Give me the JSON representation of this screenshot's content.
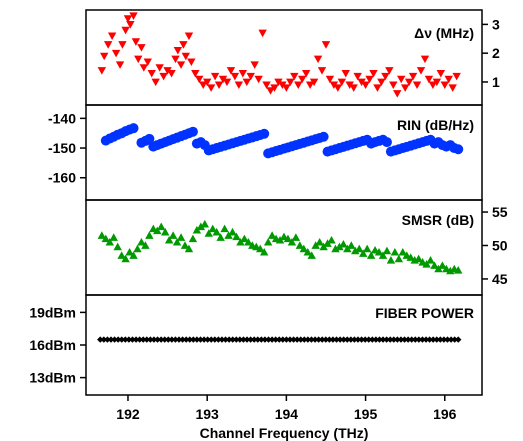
{
  "chart_data": [
    {
      "type": "scatter",
      "label": "Δν (MHz)",
      "marker": "triangle-down",
      "color": "#ff0000",
      "y_axis_side": "right",
      "ylim": [
        0.2,
        3.5
      ],
      "yticks": [
        1,
        2,
        3
      ],
      "ytick_labels": [
        "1",
        "2",
        "3"
      ],
      "x": [
        191.67,
        191.7,
        191.75,
        191.8,
        191.85,
        191.9,
        191.93,
        191.97,
        192.0,
        192.03,
        192.07,
        192.1,
        192.13,
        192.17,
        192.2,
        192.25,
        192.3,
        192.35,
        192.4,
        192.45,
        192.5,
        192.55,
        192.6,
        192.63,
        192.67,
        192.7,
        192.73,
        192.77,
        192.8,
        192.85,
        192.9,
        192.95,
        193.0,
        193.05,
        193.1,
        193.15,
        193.2,
        193.25,
        193.3,
        193.35,
        193.4,
        193.45,
        193.5,
        193.55,
        193.6,
        193.65,
        193.7,
        193.75,
        193.8,
        193.85,
        193.9,
        193.95,
        194.0,
        194.05,
        194.1,
        194.15,
        194.2,
        194.25,
        194.3,
        194.35,
        194.4,
        194.45,
        194.5,
        194.55,
        194.6,
        194.65,
        194.7,
        194.75,
        194.8,
        194.85,
        194.9,
        194.95,
        195.0,
        195.05,
        195.1,
        195.15,
        195.2,
        195.25,
        195.3,
        195.35,
        195.4,
        195.45,
        195.5,
        195.55,
        195.6,
        195.65,
        195.7,
        195.75,
        195.8,
        195.85,
        195.9,
        195.95,
        196.0,
        196.05,
        196.1,
        196.15
      ],
      "y": [
        1.4,
        1.9,
        2.3,
        2.6,
        2.0,
        1.6,
        2.3,
        2.8,
        3.2,
        3.0,
        3.3,
        2.4,
        1.8,
        2.2,
        1.5,
        1.7,
        1.3,
        1.0,
        1.5,
        1.2,
        1.4,
        1.3,
        1.8,
        2.1,
        1.6,
        2.3,
        1.9,
        2.6,
        1.7,
        1.3,
        1.1,
        0.9,
        1.0,
        0.8,
        1.2,
        0.9,
        1.1,
        1.0,
        1.4,
        1.2,
        0.9,
        1.3,
        1.0,
        1.2,
        1.6,
        1.1,
        2.7,
        0.9,
        0.7,
        0.8,
        1.0,
        0.9,
        0.8,
        1.0,
        1.2,
        0.9,
        1.1,
        1.3,
        0.9,
        1.0,
        1.8,
        1.4,
        2.3,
        1.1,
        0.9,
        0.8,
        1.0,
        1.3,
        0.9,
        0.8,
        1.2,
        1.0,
        0.9,
        1.1,
        1.3,
        0.8,
        1.0,
        1.2,
        1.4,
        0.9,
        0.6,
        1.1,
        0.8,
        1.0,
        1.2,
        0.9,
        1.4,
        1.8,
        1.1,
        0.9,
        1.0,
        1.3,
        0.9,
        1.1,
        0.8,
        1.2
      ]
    },
    {
      "type": "scatter",
      "label": "RIN (dB/Hz)",
      "marker": "circle",
      "color": "#0033ff",
      "y_axis_side": "left",
      "ylim": [
        -167.5,
        -135.5
      ],
      "yticks": [
        -140,
        -150,
        -160
      ],
      "ytick_labels": [
        "-140",
        "-150",
        "-160"
      ],
      "x": [
        191.72,
        191.77,
        191.82,
        191.87,
        191.92,
        191.97,
        192.02,
        192.07,
        192.17,
        192.22,
        192.27,
        192.32,
        192.37,
        192.42,
        192.47,
        192.52,
        192.57,
        192.62,
        192.67,
        192.72,
        192.77,
        192.82,
        192.87,
        192.92,
        192.97,
        193.02,
        193.07,
        193.12,
        193.17,
        193.22,
        193.27,
        193.32,
        193.37,
        193.42,
        193.47,
        193.52,
        193.57,
        193.62,
        193.67,
        193.72,
        193.77,
        193.82,
        193.87,
        193.92,
        193.97,
        194.02,
        194.07,
        194.12,
        194.17,
        194.22,
        194.27,
        194.32,
        194.37,
        194.42,
        194.47,
        194.52,
        194.57,
        194.62,
        194.67,
        194.72,
        194.77,
        194.82,
        194.87,
        194.92,
        194.97,
        195.02,
        195.07,
        195.12,
        195.17,
        195.22,
        195.27,
        195.32,
        195.37,
        195.42,
        195.47,
        195.52,
        195.57,
        195.62,
        195.67,
        195.72,
        195.77,
        195.82,
        195.87,
        195.92,
        195.97,
        196.02,
        196.07,
        196.12,
        196.17
      ],
      "y": [
        -147.5,
        -146.8,
        -146.2,
        -145.5,
        -145.0,
        -144.3,
        -143.8,
        -143.3,
        -148.2,
        -147.6,
        -146.9,
        -149.5,
        -149.0,
        -148.5,
        -148.0,
        -147.5,
        -147.0,
        -146.5,
        -146.0,
        -145.5,
        -145.0,
        -144.5,
        -148.5,
        -148.0,
        -149.0,
        -150.8,
        -150.4,
        -150.0,
        -149.6,
        -149.2,
        -148.8,
        -148.4,
        -148.0,
        -147.6,
        -147.2,
        -146.8,
        -146.4,
        -146.0,
        -145.6,
        -145.2,
        -151.8,
        -151.4,
        -151.0,
        -150.6,
        -150.2,
        -149.8,
        -149.4,
        -149.0,
        -148.6,
        -148.2,
        -147.8,
        -147.4,
        -147.0,
        -146.6,
        -146.2,
        -151.2,
        -150.8,
        -150.4,
        -150.0,
        -149.6,
        -149.2,
        -148.8,
        -148.4,
        -148.0,
        -147.6,
        -147.2,
        -148.5,
        -148.0,
        -147.6,
        -147.2,
        -148.0,
        -151.2,
        -150.8,
        -150.4,
        -150.0,
        -149.6,
        -149.2,
        -148.8,
        -148.4,
        -148.0,
        -147.6,
        -147.2,
        -148.5,
        -148.0,
        -149.0,
        -149.5,
        -149.0,
        -150.0,
        -150.4
      ]
    },
    {
      "type": "scatter",
      "label": "SMSR (dB)",
      "marker": "triangle-up",
      "color": "#009900",
      "y_axis_side": "right",
      "ylim": [
        42.6,
        56.8
      ],
      "yticks": [
        45,
        50,
        55
      ],
      "ytick_labels": [
        "45",
        "50",
        "55"
      ],
      "x": [
        191.67,
        191.72,
        191.77,
        191.82,
        191.87,
        191.92,
        191.97,
        192.02,
        192.07,
        192.12,
        192.17,
        192.22,
        192.27,
        192.32,
        192.37,
        192.42,
        192.47,
        192.52,
        192.57,
        192.62,
        192.67,
        192.72,
        192.77,
        192.82,
        192.87,
        192.92,
        192.97,
        193.02,
        193.07,
        193.12,
        193.17,
        193.22,
        193.27,
        193.32,
        193.37,
        193.42,
        193.47,
        193.52,
        193.57,
        193.62,
        193.67,
        193.72,
        193.77,
        193.82,
        193.87,
        193.92,
        193.97,
        194.02,
        194.07,
        194.12,
        194.17,
        194.22,
        194.27,
        194.32,
        194.37,
        194.42,
        194.47,
        194.52,
        194.57,
        194.62,
        194.67,
        194.72,
        194.77,
        194.82,
        194.87,
        194.92,
        194.97,
        195.02,
        195.07,
        195.12,
        195.17,
        195.22,
        195.27,
        195.32,
        195.37,
        195.42,
        195.47,
        195.52,
        195.57,
        195.62,
        195.67,
        195.72,
        195.77,
        195.82,
        195.87,
        195.92,
        195.97,
        196.02,
        196.07,
        196.12,
        196.17
      ],
      "y": [
        51.5,
        51.0,
        50.5,
        51.2,
        49.8,
        48.5,
        48.0,
        49.0,
        48.5,
        49.5,
        50.5,
        50.0,
        51.5,
        52.5,
        52.2,
        52.8,
        52.0,
        50.8,
        51.5,
        50.5,
        51.2,
        50.0,
        49.5,
        51.0,
        52.3,
        52.8,
        53.2,
        51.8,
        52.5,
        52.0,
        51.2,
        52.5,
        51.5,
        52.0,
        51.3,
        50.5,
        51.0,
        50.5,
        50.0,
        49.8,
        49.5,
        49.0,
        50.5,
        51.5,
        51.0,
        50.8,
        51.3,
        51.0,
        50.5,
        51.2,
        50.0,
        49.5,
        49.0,
        48.5,
        50.0,
        50.5,
        49.8,
        50.3,
        50.8,
        49.5,
        49.8,
        50.2,
        49.5,
        50.0,
        49.2,
        49.5,
        48.8,
        49.5,
        48.5,
        49.3,
        49.0,
        48.5,
        49.2,
        47.8,
        49.0,
        48.0,
        49.0,
        48.5,
        48.2,
        47.8,
        48.0,
        47.5,
        47.2,
        47.8,
        47.0,
        46.5,
        47.0,
        46.5,
        46.2,
        46.5,
        46.3
      ]
    },
    {
      "type": "line",
      "label": "FIBER POWER",
      "marker": "diamond",
      "color": "#000000",
      "y_axis_side": "left",
      "ylim": [
        11.4,
        20.6
      ],
      "yticks": [
        19,
        16,
        13
      ],
      "ytick_labels": [
        "19dBm",
        "16dBm",
        "13dBm"
      ],
      "x_start": 191.65,
      "x_end": 196.17,
      "y_level": 16.5
    }
  ],
  "x_axis": {
    "title": "Channel Frequency (THz)",
    "xlim": [
      191.47,
      196.47
    ],
    "ticks": [
      192,
      193,
      194,
      195,
      196
    ],
    "tick_labels": [
      "192",
      "193",
      "194",
      "195",
      "196"
    ]
  }
}
